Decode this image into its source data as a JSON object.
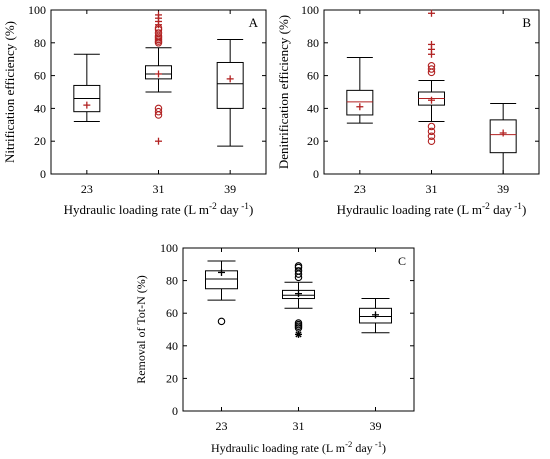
{
  "chart_data": [
    {
      "type": "box",
      "panel_label": "A",
      "title": "",
      "xlabel_main": "Hydraulic loading rate (L m",
      "xlabel_sup1": "-2",
      "xlabel_mid": " day",
      "xlabel_sup2": " -1",
      "xlabel_end": ")",
      "ylabel": "Nitrification efficiency (%)",
      "ylim": [
        0,
        100
      ],
      "yticks": [
        0,
        20,
        40,
        60,
        80,
        100
      ],
      "categories": [
        "23",
        "31",
        "39"
      ],
      "boxes": [
        {
          "category": "23",
          "whisker_low": 32,
          "q1": 38,
          "median": 46,
          "q3": 54,
          "whisker_high": 73,
          "mean": 42,
          "outliers": [],
          "extreme_outliers": []
        },
        {
          "category": "31",
          "whisker_low": 50,
          "q1": 58,
          "median": 61,
          "q3": 66,
          "whisker_high": 77,
          "mean": 61,
          "outliers": [
            36,
            38,
            40,
            80,
            81,
            82,
            83,
            84,
            86,
            88,
            89
          ],
          "extreme_outliers": [
            20,
            91,
            93,
            95,
            97
          ]
        },
        {
          "category": "39",
          "whisker_low": 17,
          "q1": 40,
          "median": 55,
          "q3": 68,
          "whisker_high": 82,
          "mean": 58,
          "outliers": [],
          "extreme_outliers": []
        }
      ],
      "box_color": "#000000",
      "median_color": "#000000",
      "mean_color": "#b22222",
      "outlier_color": "#b22222"
    },
    {
      "type": "box",
      "panel_label": "B",
      "title": "",
      "xlabel_main": "Hydraulic loading rate (L m",
      "xlabel_sup1": "-2",
      "xlabel_mid": " day",
      "xlabel_sup2": " -1",
      "xlabel_end": ")",
      "ylabel": "Denitrification efficiency (%)",
      "ylim": [
        0,
        100
      ],
      "yticks": [
        0,
        20,
        40,
        60,
        80,
        100
      ],
      "categories": [
        "23",
        "31",
        "39"
      ],
      "boxes": [
        {
          "category": "23",
          "whisker_low": 31,
          "q1": 36,
          "median": 44,
          "q3": 51,
          "whisker_high": 71,
          "mean": 41,
          "outliers": [],
          "extreme_outliers": []
        },
        {
          "category": "31",
          "whisker_low": 32,
          "q1": 42,
          "median": 46,
          "q3": 50,
          "whisker_high": 57,
          "mean": 45,
          "outliers": [
            20,
            23,
            26,
            29,
            62,
            64,
            66
          ],
          "extreme_outliers": [
            73,
            76,
            79,
            98
          ]
        },
        {
          "category": "39",
          "whisker_low": 0,
          "q1": 13,
          "median": 24,
          "q3": 33,
          "whisker_high": 43,
          "mean": 25,
          "outliers": [],
          "extreme_outliers": []
        }
      ],
      "box_color": "#000000",
      "median_color": "#b22222",
      "mean_color": "#b22222",
      "outlier_color": "#b22222"
    },
    {
      "type": "box",
      "panel_label": "C",
      "title": "",
      "xlabel_main": "Hydraulic loading rate (L m",
      "xlabel_sup1": "-2",
      "xlabel_mid": " day",
      "xlabel_sup2": " -1",
      "xlabel_end": ")",
      "ylabel": "Removal of Tot-N (%)",
      "ylim": [
        0,
        100
      ],
      "yticks": [
        0,
        20,
        40,
        60,
        80,
        100
      ],
      "categories": [
        "23",
        "31",
        "39"
      ],
      "boxes": [
        {
          "category": "23",
          "whisker_low": 68,
          "q1": 75,
          "median": 81,
          "q3": 86,
          "whisker_high": 92,
          "mean": 85,
          "outliers": [
            55
          ],
          "extreme_outliers": []
        },
        {
          "category": "31",
          "whisker_low": 63,
          "q1": 69,
          "median": 71,
          "q3": 74,
          "whisker_high": 79,
          "mean": 72,
          "outliers": [
            51,
            52,
            53,
            54,
            82,
            84,
            86,
            88,
            89
          ],
          "extreme_outliers": [
            47
          ]
        },
        {
          "category": "39",
          "whisker_low": 48,
          "q1": 54,
          "median": 58,
          "q3": 63,
          "whisker_high": 69,
          "mean": 59,
          "outliers": [],
          "extreme_outliers": []
        }
      ],
      "box_color": "#000000",
      "median_color": "#000000",
      "mean_color": "#000000",
      "outlier_color": "#000000"
    }
  ]
}
